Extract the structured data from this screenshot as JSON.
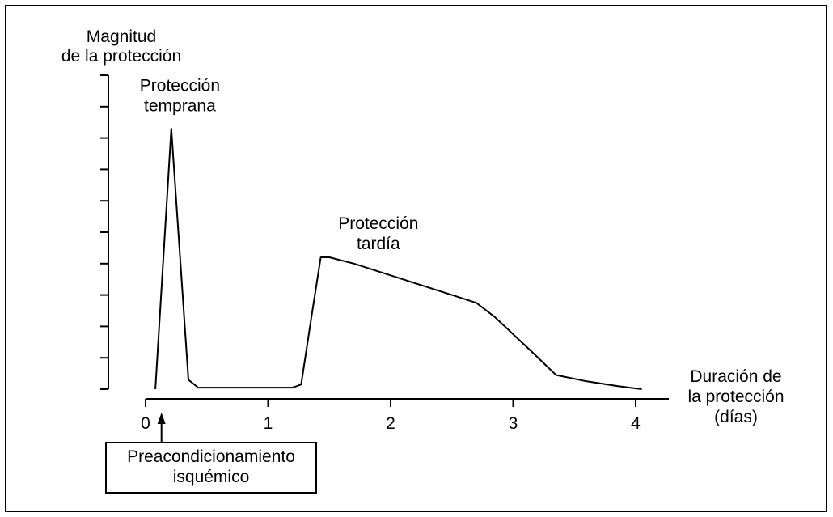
{
  "chart_data": {
    "type": "line",
    "title": "",
    "ylabel_lines": [
      "Magnitud",
      "de la protección"
    ],
    "xlabel_lines": [
      "Duración de",
      "la protección",
      "(días)"
    ],
    "xlim": [
      0,
      4
    ],
    "ylim": [
      0,
      10
    ],
    "x_ticks": [
      0,
      1,
      2,
      3,
      4
    ],
    "x_tick_labels": [
      "0",
      "1",
      "2",
      "3",
      "4"
    ],
    "y_tick_count": 10,
    "show_y_tick_labels": false,
    "grid": false,
    "series": [
      {
        "points": [
          [
            0.08,
            0.0
          ],
          [
            0.21,
            8.3
          ],
          [
            0.35,
            0.3
          ],
          [
            0.43,
            0.05
          ],
          [
            0.6,
            0.05
          ],
          [
            1.0,
            0.05
          ],
          [
            1.2,
            0.05
          ],
          [
            1.27,
            0.15
          ],
          [
            1.35,
            2.2
          ],
          [
            1.43,
            4.2
          ],
          [
            1.5,
            4.2
          ],
          [
            1.7,
            4.0
          ],
          [
            2.1,
            3.5
          ],
          [
            2.5,
            3.0
          ],
          [
            2.7,
            2.75
          ],
          [
            2.85,
            2.3
          ],
          [
            3.15,
            1.2
          ],
          [
            3.35,
            0.45
          ],
          [
            3.6,
            0.25
          ],
          [
            3.85,
            0.1
          ],
          [
            4.05,
            0.0
          ]
        ]
      }
    ],
    "annotations": [
      {
        "lines": [
          "Protección",
          "temprana"
        ],
        "x": 0.28,
        "y": 9.5
      },
      {
        "lines": [
          "Protección",
          "tardía"
        ],
        "x": 1.9,
        "y": 5.1
      }
    ],
    "marker": {
      "x": 0.13,
      "lines": [
        "Preacondicionamiento",
        "isquémico"
      ]
    }
  }
}
